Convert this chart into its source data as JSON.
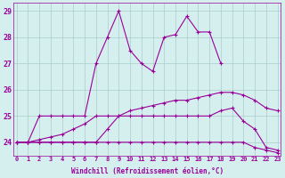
{
  "xlabel": "Windchill (Refroidissement éolien,°C)",
  "hours": [
    0,
    1,
    2,
    3,
    4,
    5,
    6,
    7,
    8,
    9,
    10,
    11,
    12,
    13,
    14,
    15,
    16,
    17,
    18,
    19,
    20,
    21,
    22,
    23
  ],
  "line1": [
    24,
    24,
    25,
    25,
    25,
    25,
    25,
    27,
    28,
    29,
    27.5,
    27,
    26.7,
    28.0,
    28.1,
    28.8,
    28.2,
    28.2,
    27.0,
    null,
    null,
    null,
    null,
    null
  ],
  "line2": [
    24,
    24,
    24.1,
    24.2,
    24.3,
    24.5,
    24.7,
    25.0,
    25.0,
    25.0,
    25.2,
    25.3,
    25.4,
    25.5,
    25.6,
    25.6,
    25.7,
    25.8,
    25.9,
    25.9,
    25.8,
    25.6,
    25.3,
    25.2
  ],
  "line3": [
    24,
    24,
    24,
    24,
    24,
    24,
    24,
    24,
    24.5,
    25,
    25,
    25,
    25,
    25,
    25,
    25,
    25,
    25,
    25.2,
    25.3,
    24.8,
    24.5,
    23.8,
    23.7
  ],
  "line4": [
    24,
    24,
    24,
    24,
    24,
    24,
    24,
    24,
    24,
    24,
    24,
    24,
    24,
    24,
    24,
    24,
    24,
    24,
    24,
    24,
    24,
    23.8,
    23.7,
    23.6
  ],
  "line_color": "#990099",
  "bg_color": "#d5efef",
  "grid_color": "#aacccc",
  "text_color": "#990099",
  "ylim": [
    23.5,
    29.3
  ],
  "xlim": [
    -0.3,
    23.3
  ],
  "yticks": [
    24,
    25,
    26,
    27,
    28,
    29
  ],
  "xtick_fontsize": 5.0,
  "ytick_fontsize": 6.0,
  "xlabel_fontsize": 5.5,
  "linewidth": 0.8,
  "markersize": 2.5
}
